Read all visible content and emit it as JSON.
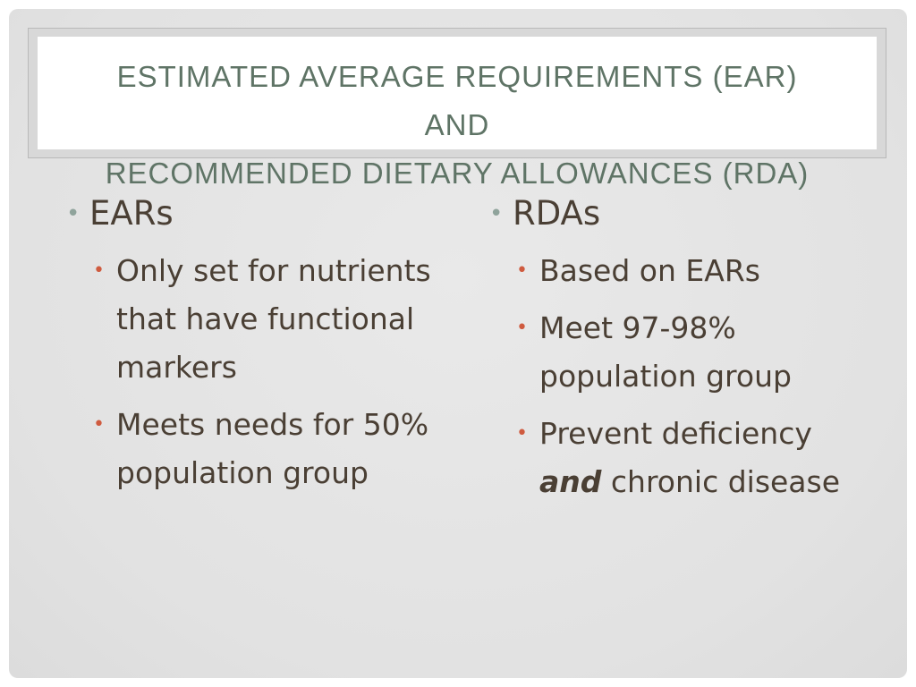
{
  "title": {
    "line1": "Estimated Average Requirements (EAR)",
    "line2": "and",
    "line3": "Recommended Dietary Allowances (RDA)"
  },
  "left": {
    "heading": "EARs",
    "items": [
      "Only set for nutrients that have functional markers",
      "Meets needs for 50% population group"
    ]
  },
  "right": {
    "heading": "RDAs",
    "items": [
      "Based on EARs",
      "Meet 97-98% population group"
    ],
    "item3_before": "Prevent deficiency",
    "item3_emphasis": "and",
    "item3_after": "chronic disease"
  },
  "colors": {
    "title": "#5f7466",
    "body_text": "#4a3f34",
    "level1_bullet": "#8fa39b",
    "level2_bullet": "#cf5b3f",
    "background": "#e4e4e4"
  }
}
